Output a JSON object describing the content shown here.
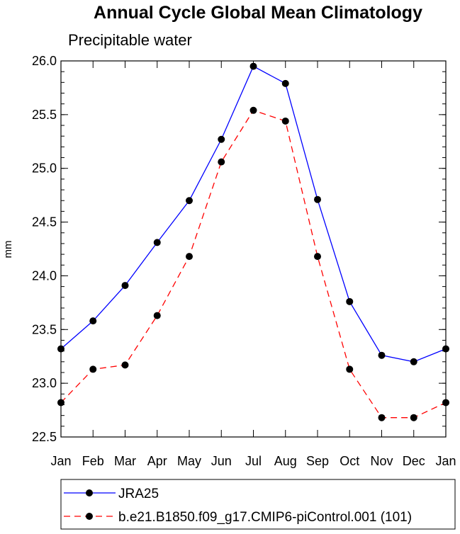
{
  "chart_data": {
    "type": "line",
    "title": "Annual Cycle Global Mean Climatology",
    "subtitle": "Precipitable water",
    "xlabel": "",
    "ylabel": "mm",
    "categories": [
      "Jan",
      "Feb",
      "Mar",
      "Apr",
      "May",
      "Jun",
      "Jul",
      "Aug",
      "Sep",
      "Oct",
      "Nov",
      "Dec",
      "Jan"
    ],
    "ylim": [
      22.5,
      26.0
    ],
    "yticks": [
      "22.5",
      "23.0",
      "23.5",
      "24.0",
      "24.5",
      "25.0",
      "25.5",
      "26.0"
    ],
    "grid": false,
    "legend_position": "bottom",
    "series": [
      {
        "name": "JRA25",
        "color": "#0000ff",
        "dash": "solid",
        "values": [
          23.32,
          23.58,
          23.91,
          24.31,
          24.7,
          25.27,
          25.95,
          25.79,
          24.71,
          23.76,
          23.26,
          23.2,
          23.32
        ]
      },
      {
        "name": "b.e21.B1850.f09_g17.CMIP6-piControl.001 (101)",
        "color": "#ff0000",
        "dash": "dashed",
        "values": [
          22.82,
          23.13,
          23.17,
          23.63,
          24.18,
          25.06,
          25.54,
          25.44,
          24.18,
          23.13,
          22.68,
          22.68,
          22.82
        ]
      }
    ]
  }
}
